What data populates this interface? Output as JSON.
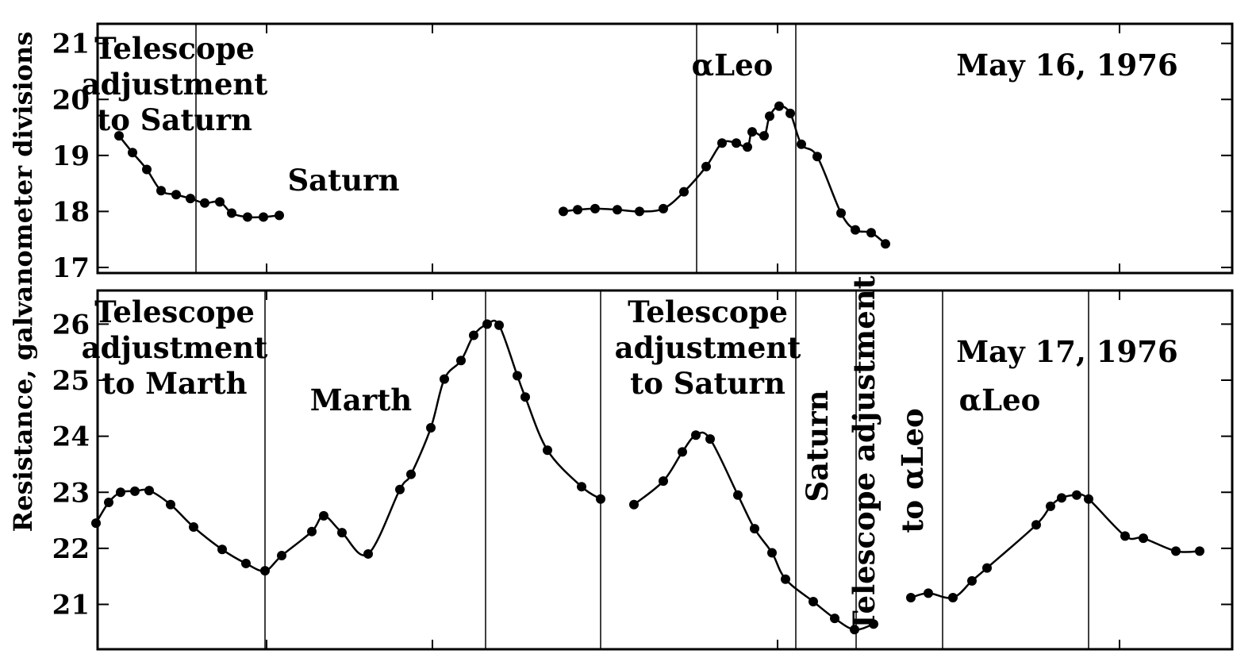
{
  "chart_data": {
    "type": "line",
    "ylabel": "Resistance, galvanometer divisions",
    "panels": [
      {
        "ylim": [
          16.9,
          21.35
        ],
        "yticks": [
          17,
          18,
          19,
          20,
          21
        ],
        "series": [
          {
            "points": [
              [
                150,
                19.35
              ],
              [
                167,
                19.05
              ],
              [
                185,
                18.75
              ],
              [
                203,
                18.37
              ],
              [
                222,
                18.3
              ],
              [
                240,
                18.23
              ],
              [
                258,
                18.15
              ],
              [
                277,
                18.17
              ],
              [
                292,
                17.97
              ],
              [
                312,
                17.9
              ],
              [
                332,
                17.9
              ],
              [
                352,
                17.93
              ]
            ]
          },
          {
            "points": [
              [
                710,
                18.0
              ],
              [
                728,
                18.03
              ],
              [
                750,
                18.05
              ],
              [
                778,
                18.03
              ],
              [
                806,
                18.0
              ],
              [
                836,
                18.05
              ],
              [
                862,
                18.35
              ],
              [
                890,
                18.8
              ],
              [
                910,
                19.22
              ],
              [
                928,
                19.22
              ],
              [
                942,
                19.15
              ],
              [
                948,
                19.42
              ],
              [
                963,
                19.35
              ],
              [
                970,
                19.7
              ],
              [
                982,
                19.88
              ],
              [
                996,
                19.75
              ],
              [
                1010,
                19.2
              ],
              [
                1030,
                18.98
              ],
              [
                1060,
                17.97
              ],
              [
                1078,
                17.67
              ],
              [
                1098,
                17.62
              ],
              [
                1116,
                17.42
              ]
            ]
          }
        ],
        "vlines_x": [
          247,
          878,
          1003
        ],
        "annotations": [
          {
            "lines": [
              "Telescope",
              "adjustment",
              "to Saturn"
            ],
            "x": 220,
            "y": 74
          },
          {
            "lines": [
              "Saturn"
            ],
            "x": 433,
            "y": 240
          },
          {
            "lines": [
              "αLeo"
            ],
            "x": 923,
            "y": 95
          },
          {
            "lines": [
              "May 16, 1976"
            ],
            "x": 1345,
            "y": 95
          }
        ]
      },
      {
        "ylim": [
          20.2,
          26.6
        ],
        "yticks": [
          21,
          22,
          23,
          24,
          25,
          26
        ],
        "series": [
          {
            "points": [
              [
                121,
                22.45
              ],
              [
                137,
                22.82
              ],
              [
                152,
                23.0
              ],
              [
                170,
                23.02
              ],
              [
                188,
                23.03
              ],
              [
                215,
                22.78
              ],
              [
                244,
                22.38
              ],
              [
                280,
                21.98
              ],
              [
                310,
                21.73
              ],
              [
                334,
                21.6
              ],
              [
                355,
                21.87
              ],
              [
                393,
                22.3
              ],
              [
                408,
                22.58
              ],
              [
                431,
                22.28
              ],
              [
                464,
                21.9
              ],
              [
                504,
                23.05
              ],
              [
                518,
                23.32
              ],
              [
                543,
                24.15
              ],
              [
                560,
                25.02
              ],
              [
                581,
                25.35
              ],
              [
                597,
                25.8
              ],
              [
                614,
                26.0
              ],
              [
                629,
                25.98
              ],
              [
                652,
                25.08
              ],
              [
                662,
                24.7
              ],
              [
                690,
                23.75
              ],
              [
                733,
                23.1
              ],
              [
                757,
                22.88
              ]
            ]
          },
          {
            "points": [
              [
                799,
                22.78
              ],
              [
                836,
                23.2
              ],
              [
                860,
                23.72
              ],
              [
                877,
                24.02
              ],
              [
                895,
                23.95
              ],
              [
                930,
                22.95
              ],
              [
                951,
                22.35
              ],
              [
                973,
                21.92
              ],
              [
                990,
                21.45
              ],
              [
                1025,
                21.05
              ],
              [
                1052,
                20.75
              ],
              [
                1077,
                20.55
              ],
              [
                1101,
                20.65
              ]
            ]
          },
          {
            "points": [
              [
                1148,
                21.12
              ],
              [
                1170,
                21.2
              ],
              [
                1201,
                21.12
              ],
              [
                1225,
                21.42
              ],
              [
                1244,
                21.65
              ],
              [
                1306,
                22.42
              ],
              [
                1324,
                22.75
              ],
              [
                1338,
                22.9
              ],
              [
                1357,
                22.95
              ],
              [
                1372,
                22.88
              ],
              [
                1418,
                22.22
              ],
              [
                1441,
                22.18
              ],
              [
                1482,
                21.95
              ],
              [
                1512,
                21.95
              ]
            ]
          }
        ],
        "vlines_x": [
          334,
          612,
          757,
          1003,
          1079,
          1188,
          1372
        ],
        "annotations": [
          {
            "lines": [
              "Telescope",
              "adjustment",
              "to Marth"
            ],
            "x": 220,
            "y": 406
          },
          {
            "lines": [
              "Marth"
            ],
            "x": 455,
            "y": 517
          },
          {
            "lines": [
              "Telescope",
              "adjustment",
              "to Saturn"
            ],
            "x": 892,
            "y": 406
          },
          {
            "lines": [
              "Saturn"
            ],
            "x": 1043,
            "y": 562,
            "rotate": -90
          },
          {
            "lines": [
              "Telescope adjustment"
            ],
            "x": 1102,
            "y": 572,
            "rotate": -90
          },
          {
            "lines": [
              "to αLeo"
            ],
            "x": 1163,
            "y": 593,
            "rotate": -90
          },
          {
            "lines": [
              "May 17, 1976"
            ],
            "x": 1345,
            "y": 456
          },
          {
            "lines": [
              "αLeo"
            ],
            "x": 1260,
            "y": 517
          }
        ]
      }
    ],
    "grid": false,
    "legend": "none"
  }
}
